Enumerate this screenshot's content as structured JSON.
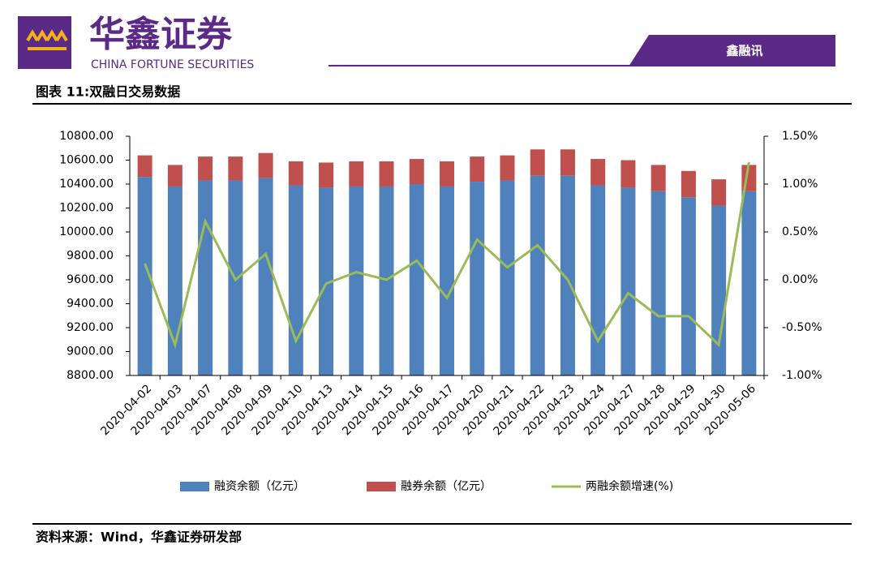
{
  "header": {
    "brand": "华鑫证券",
    "brand_en": "CHINA FORTUNE SECURITIES",
    "tag": "鑫融讯"
  },
  "figure_title": "图表 11:双融日交易数据",
  "source": "资料来源：Wind，华鑫证券研发部",
  "chart_data": {
    "type": "bar",
    "stacked": true,
    "categories": [
      "2020-04-02",
      "2020-04-03",
      "2020-04-07",
      "2020-04-08",
      "2020-04-09",
      "2020-04-10",
      "2020-04-13",
      "2020-04-14",
      "2020-04-15",
      "2020-04-16",
      "2020-04-17",
      "2020-04-20",
      "2020-04-21",
      "2020-04-22",
      "2020-04-23",
      "2020-04-24",
      "2020-04-27",
      "2020-04-28",
      "2020-04-29",
      "2020-04-30",
      "2020-05-06"
    ],
    "series": [
      {
        "name": "融资余额（亿元）",
        "color": "#4f81bd",
        "values": [
          10460,
          10380,
          10430,
          10430,
          10450,
          10390,
          10370,
          10380,
          10380,
          10400,
          10380,
          10420,
          10430,
          10470,
          10470,
          10390,
          10370,
          10340,
          10290,
          10220,
          10340
        ]
      },
      {
        "name": "融券余额（亿元）",
        "color": "#c0504d",
        "values": [
          180,
          180,
          200,
          200,
          210,
          200,
          210,
          210,
          210,
          210,
          210,
          210,
          210,
          220,
          220,
          220,
          230,
          220,
          220,
          220,
          220
        ]
      },
      {
        "name": "两融余额增速(%)",
        "color": "#9bbb59",
        "type": "line",
        "axis": "y2",
        "values": [
          0.17,
          -0.68,
          0.61,
          0.0,
          0.27,
          -0.64,
          -0.04,
          0.08,
          0.0,
          0.2,
          -0.19,
          0.42,
          0.13,
          0.36,
          0.0,
          -0.64,
          -0.14,
          -0.38,
          -0.38,
          -0.68,
          1.23
        ]
      }
    ],
    "ylim": [
      8800,
      10800
    ],
    "yticks": [
      {
        "value": 8800,
        "label": "8800.00"
      },
      {
        "value": 9000,
        "label": "9000.00"
      },
      {
        "value": 9200,
        "label": "9200.00"
      },
      {
        "value": 9400,
        "label": "9400.00"
      },
      {
        "value": 9600,
        "label": "9600.00"
      },
      {
        "value": 9800,
        "label": "9800.00"
      },
      {
        "value": 10000,
        "label": "10000.00"
      },
      {
        "value": 10200,
        "label": "10200.00"
      },
      {
        "value": 10400,
        "label": "10400.00"
      },
      {
        "value": 10600,
        "label": "10600.00"
      },
      {
        "value": 10800,
        "label": "10800.00"
      }
    ],
    "y2lim": [
      -1,
      1.5
    ],
    "y2ticks": [
      {
        "value": -1,
        "label": "-1.00%"
      },
      {
        "value": -0.5,
        "label": "-0.50%"
      },
      {
        "value": 0,
        "label": "0.00%"
      },
      {
        "value": 0.5,
        "label": "0.50%"
      },
      {
        "value": 1,
        "label": "1.00%"
      },
      {
        "value": 1.5,
        "label": "1.50%"
      }
    ],
    "legend": "bottom"
  }
}
